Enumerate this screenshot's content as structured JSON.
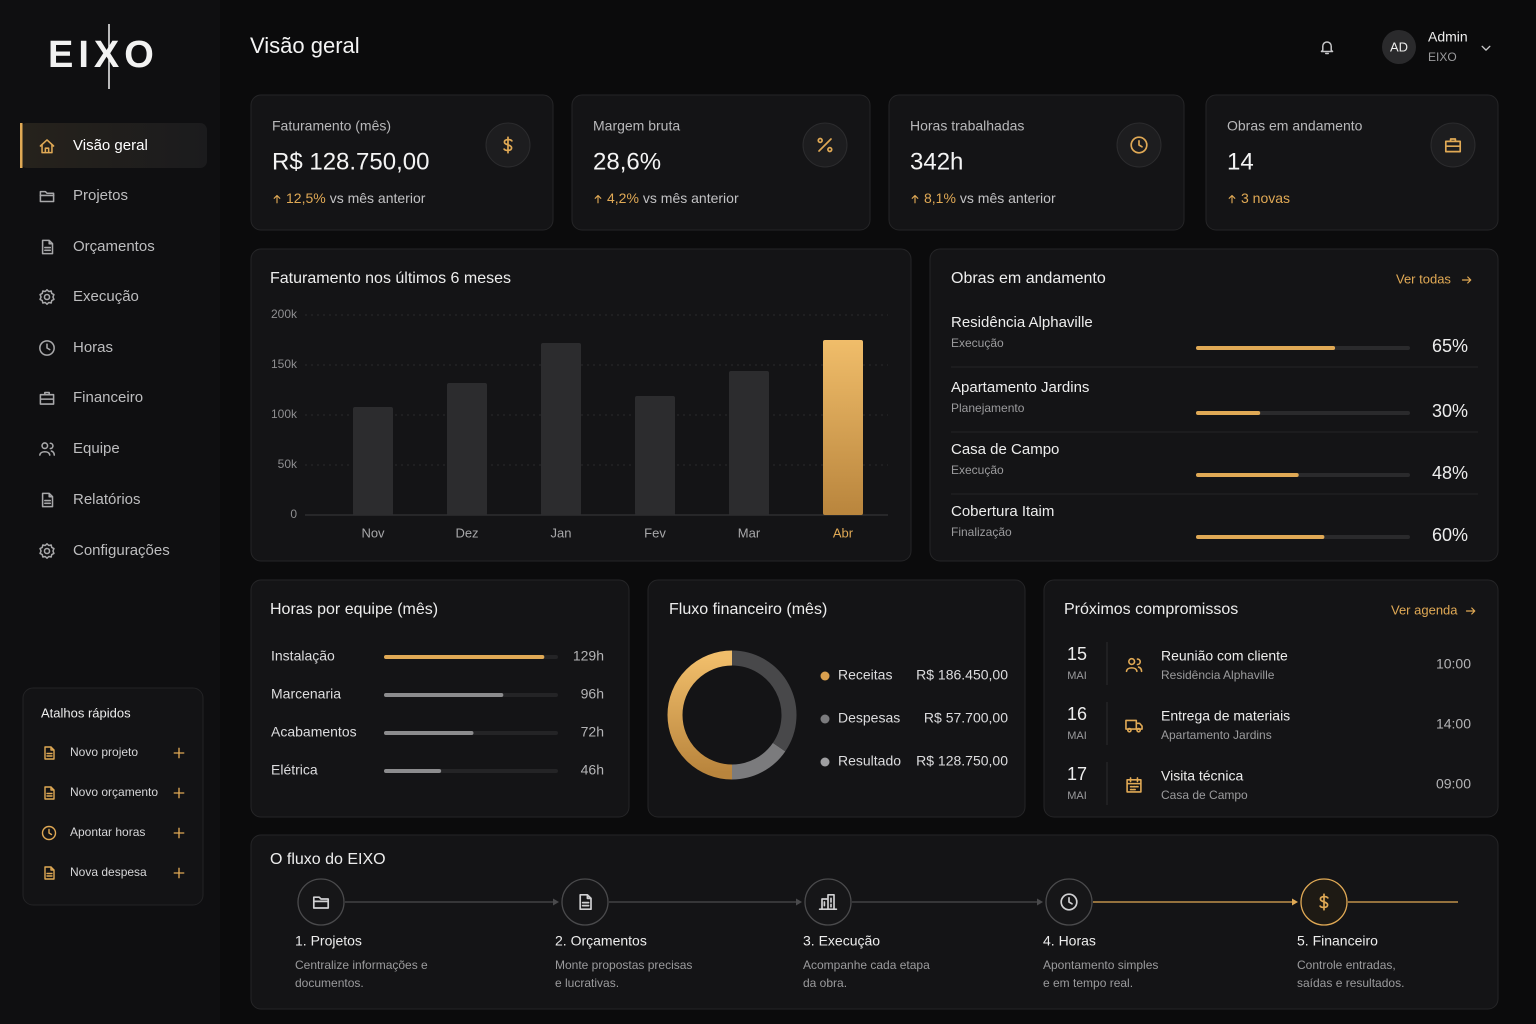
{
  "sidebar": {
    "logo": "EIXO",
    "nav": [
      {
        "label": "Visão geral",
        "active": true
      },
      {
        "label": "Projetos",
        "active": false
      },
      {
        "label": "Orçamentos",
        "active": false
      },
      {
        "label": "Execução",
        "active": false
      },
      {
        "label": "Horas",
        "active": false
      },
      {
        "label": "Financeiro",
        "active": false
      },
      {
        "label": "Equipe",
        "active": false
      },
      {
        "label": "Relatórios",
        "active": false
      },
      {
        "label": "Configurações",
        "active": false
      }
    ],
    "shortcuts": {
      "title": "Atalhos rápidos",
      "items": [
        "Novo projeto",
        "Novo orçamento",
        "Apontar horas",
        "Nova despesa"
      ]
    }
  },
  "header": {
    "title": "Visão geral",
    "user": {
      "initials": "AD",
      "name": "Admin",
      "company": "EIXO"
    }
  },
  "kpis": [
    {
      "label": "Faturamento (mês)",
      "value": "R$ 128.750,00",
      "delta": "12,5%",
      "delta_text": "vs mês anterior"
    },
    {
      "label": "Margem bruta",
      "value": "28,6%",
      "delta": "4,2%",
      "delta_text": "vs mês anterior"
    },
    {
      "label": "Horas trabalhadas",
      "value": "342h",
      "delta": "8,1%",
      "delta_text": "vs mês anterior"
    },
    {
      "label": "Obras em andamento",
      "value": "14",
      "delta": "3 novas"
    }
  ],
  "revenue_chart": {
    "type": "bar",
    "title": "Faturamento nos últimos 6 meses",
    "categories": [
      "Nov",
      "Dez",
      "Jan",
      "Fev",
      "Mar",
      "Abr"
    ],
    "values": [
      108000,
      132000,
      172000,
      119000,
      144000,
      175000
    ],
    "colors": [
      "#2c2c2e",
      "#2c2c2e",
      "#2c2c2e",
      "#2c2c2e",
      "#2c2c2e",
      "#dba457"
    ],
    "ylim": [
      0,
      200000
    ],
    "yticks": [
      {
        "value": 0,
        "label": "0"
      },
      {
        "value": 50000,
        "label": "50k"
      },
      {
        "value": 100000,
        "label": "100k"
      },
      {
        "value": 150000,
        "label": "150k"
      },
      {
        "value": 200000,
        "label": "200k"
      }
    ],
    "grid": true
  },
  "projects": {
    "title": "Obras em andamento",
    "link": "Ver todas",
    "xlim": [
      0,
      100
    ],
    "items": [
      {
        "name": "Residência Alphaville",
        "stage": "Execução",
        "progress": 65,
        "progress_label": "65%"
      },
      {
        "name": "Apartamento Jardins",
        "stage": "Planejamento",
        "progress": 30,
        "progress_label": "30%"
      },
      {
        "name": "Casa de Campo",
        "stage": "Execução",
        "progress": 48,
        "progress_label": "48%"
      },
      {
        "name": "Cobertura Itaim",
        "stage": "Finalização",
        "progress": 60,
        "progress_label": "60%"
      }
    ]
  },
  "team_hours": {
    "title": "Horas por equipe (mês)",
    "xlim": [
      0,
      140
    ],
    "items": [
      {
        "team": "Instalação",
        "hours": 129,
        "label": "129h",
        "color": "#e0a955"
      },
      {
        "team": "Marcenaria",
        "hours": 96,
        "label": "96h",
        "color": "#8c8c8e"
      },
      {
        "team": "Acabamentos",
        "hours": 72,
        "label": "72h",
        "color": "#8c8c8e"
      },
      {
        "team": "Elétrica",
        "hours": 46,
        "label": "46h",
        "color": "#8c8c8e"
      }
    ]
  },
  "cash_flow": {
    "title": "Fluxo financeiro (mês)",
    "items": [
      {
        "name": "Receitas",
        "value": 186450,
        "label": "R$ 186.450,00",
        "color": "#d9a04f"
      },
      {
        "name": "Despesas",
        "value": 57700,
        "label": "R$ 57.700,00",
        "color": "#7b7b7d"
      },
      {
        "name": "Resultado",
        "value": 128750,
        "label": "R$ 128.750,00",
        "color": "#48484a"
      }
    ]
  },
  "agenda": {
    "title": "Próximos compromissos",
    "link": "Ver agenda",
    "items": [
      {
        "day": "15",
        "month": "MAI",
        "title": "Reunião com cliente",
        "subtitle": "Residência Alphaville",
        "time": "10:00"
      },
      {
        "day": "16",
        "month": "MAI",
        "title": "Entrega de materiais",
        "subtitle": "Apartamento Jardins",
        "time": "14:00"
      },
      {
        "day": "17",
        "month": "MAI",
        "title": "Visita técnica",
        "subtitle": "Casa de Campo",
        "time": "09:00"
      }
    ]
  },
  "flow": {
    "title": "O fluxo do EIXO",
    "steps": [
      {
        "title": "1. Projetos",
        "desc": [
          "Centralize informações e",
          "documentos."
        ]
      },
      {
        "title": "2. Orçamentos",
        "desc": [
          "Monte propostas precisas",
          "e lucrativas."
        ]
      },
      {
        "title": "3. Execução",
        "desc": [
          "Acompanhe cada etapa",
          "da obra."
        ]
      },
      {
        "title": "4. Horas",
        "desc": [
          "Apontamento simples",
          "e em tempo real."
        ]
      },
      {
        "title": "5. Financeiro",
        "desc": [
          "Controle entradas,",
          "saídas e resultados."
        ]
      }
    ]
  }
}
